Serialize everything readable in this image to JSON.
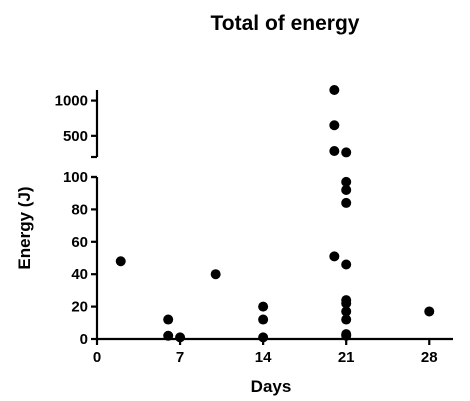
{
  "chart_data": {
    "type": "scatter",
    "title": "Total of energy",
    "xlabel": "Days",
    "ylabel": "Energy (J)",
    "xlim": [
      0,
      30
    ],
    "x_ticks": [
      0,
      7,
      14,
      21,
      28
    ],
    "y_axis_broken": true,
    "y_lower_range": [
      0,
      100
    ],
    "y_lower_ticks": [
      0,
      20,
      40,
      60,
      80,
      100
    ],
    "y_upper_range": [
      200,
      1150
    ],
    "y_upper_ticks": [
      500,
      1000
    ],
    "grid": false,
    "legend": "none",
    "points": [
      {
        "x": 2,
        "y": 48
      },
      {
        "x": 6,
        "y": 12
      },
      {
        "x": 6,
        "y": 2
      },
      {
        "x": 7,
        "y": 1
      },
      {
        "x": 10,
        "y": 40
      },
      {
        "x": 14,
        "y": 20
      },
      {
        "x": 14,
        "y": 12
      },
      {
        "x": 14,
        "y": 1
      },
      {
        "x": 20,
        "y": 1150
      },
      {
        "x": 20,
        "y": 650
      },
      {
        "x": 20,
        "y": 285
      },
      {
        "x": 21,
        "y": 265
      },
      {
        "x": 21,
        "y": 97
      },
      {
        "x": 21,
        "y": 92
      },
      {
        "x": 21,
        "y": 84
      },
      {
        "x": 20,
        "y": 51
      },
      {
        "x": 21,
        "y": 46
      },
      {
        "x": 21,
        "y": 24
      },
      {
        "x": 21,
        "y": 22
      },
      {
        "x": 21,
        "y": 17
      },
      {
        "x": 21,
        "y": 12
      },
      {
        "x": 21,
        "y": 3
      },
      {
        "x": 21,
        "y": 2
      },
      {
        "x": 28,
        "y": 17
      }
    ]
  }
}
